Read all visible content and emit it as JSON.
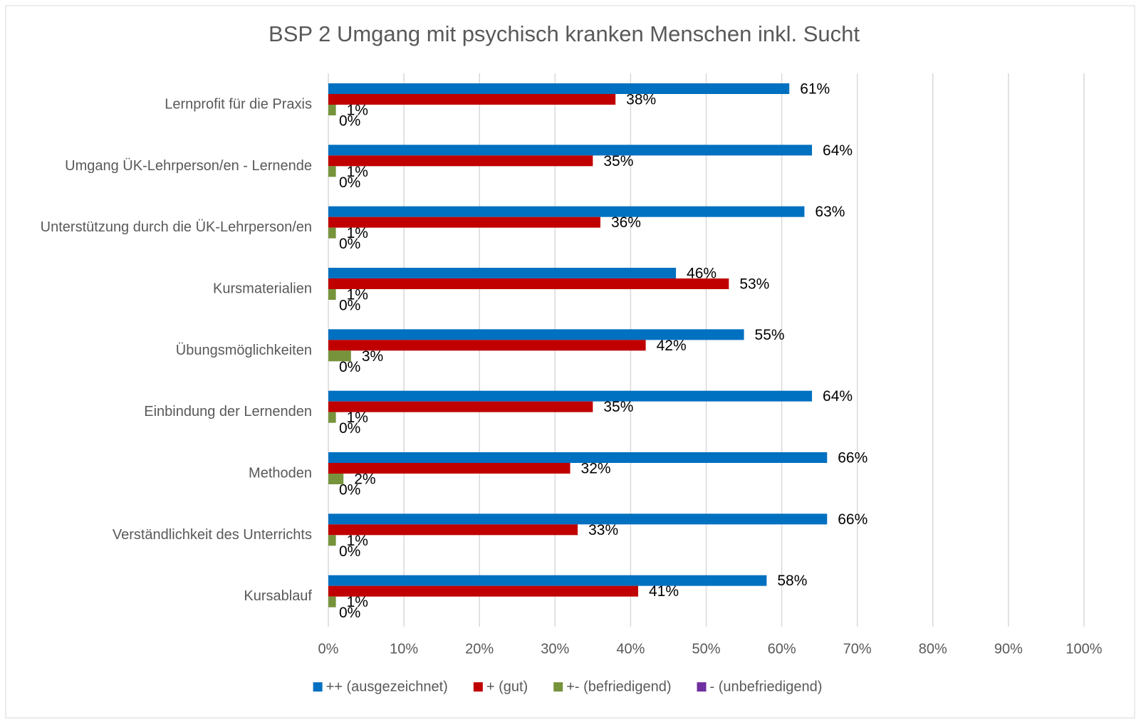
{
  "chart_data": {
    "type": "bar",
    "orientation": "horizontal",
    "title": "BSP 2 Umgang mit psychisch kranken Menschen inkl. Sucht",
    "categories": [
      "Lernprofit für die Praxis",
      "Umgang ÜK-Lehrperson/en - Lernende",
      "Unterstützung durch die ÜK-Lehrperson/en",
      "Kursmaterialien",
      "Übungsmöglichkeiten",
      "Einbindung der Lernenden",
      "Methoden",
      "Verständlichkeit des Unterrichts",
      "Kursablauf"
    ],
    "series": [
      {
        "name": "++ (ausgezeichnet)",
        "color": "#0070c0",
        "values": [
          61,
          64,
          63,
          46,
          55,
          64,
          66,
          66,
          58
        ],
        "value_labels": [
          "61%",
          "64%",
          "63%",
          "46%",
          "55%",
          "64%",
          "66%",
          "66%",
          "58%"
        ]
      },
      {
        "name": "+ (gut)",
        "color": "#c00000",
        "values": [
          38,
          35,
          36,
          53,
          42,
          35,
          32,
          33,
          41
        ],
        "value_labels": [
          "38%",
          "35%",
          "36%",
          "53%",
          "42%",
          "35%",
          "32%",
          "33%",
          "41%"
        ]
      },
      {
        "name": "+- (befriedigend)",
        "color": "#77933c",
        "values": [
          1,
          1,
          1,
          1,
          3,
          1,
          2,
          1,
          1
        ],
        "value_labels": [
          "1%",
          "1%",
          "1%",
          "1%",
          "3%",
          "1%",
          "2%",
          "1%",
          "1%"
        ]
      },
      {
        "name": "- (unbefriedigend)",
        "color": "#7030a0",
        "values": [
          0,
          0,
          0,
          0,
          0,
          0,
          0,
          0,
          0
        ],
        "value_labels": [
          "0%",
          "0%",
          "0%",
          "0%",
          "0%",
          "0%",
          "0%",
          "0%",
          "0%"
        ]
      }
    ],
    "xlim": [
      0,
      100
    ],
    "xticks": [
      {
        "value": 0,
        "label": "0%"
      },
      {
        "value": 10,
        "label": "10%"
      },
      {
        "value": 20,
        "label": "20%"
      },
      {
        "value": 30,
        "label": "30%"
      },
      {
        "value": 40,
        "label": "40%"
      },
      {
        "value": 50,
        "label": "50%"
      },
      {
        "value": 60,
        "label": "60%"
      },
      {
        "value": 70,
        "label": "70%"
      },
      {
        "value": 80,
        "label": "80%"
      },
      {
        "value": 90,
        "label": "90%"
      },
      {
        "value": 100,
        "label": "100%"
      }
    ],
    "grid": true,
    "legend": "bottom"
  }
}
